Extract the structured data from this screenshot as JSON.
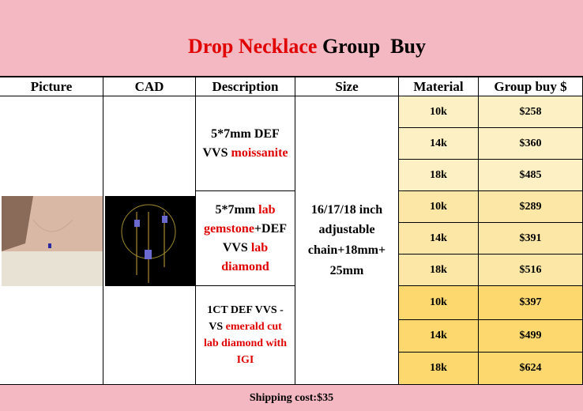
{
  "header": {
    "title_parts": [
      "Drop Necklace",
      "Group  Buy"
    ]
  },
  "table": {
    "columns": [
      "Picture",
      "CAD",
      "Description",
      "Size",
      "Material",
      "Group buy $"
    ],
    "descriptions": [
      [
        {
          "text": "5*7mm DEF VVS ",
          "red": false
        },
        {
          "text": "moissanite",
          "red": true
        }
      ],
      [
        {
          "text": "5*7mm ",
          "red": false
        },
        {
          "text": "lab gemstone",
          "red": true
        },
        {
          "text": "+DEF VVS ",
          "red": false
        },
        {
          "text": "lab diamond",
          "red": true
        }
      ],
      [
        {
          "text": "1CT DEF VVS - VS ",
          "red": false
        },
        {
          "text": "emerald cut lab diamond with IGI",
          "red": true
        }
      ]
    ],
    "size": "16/17/18 inch adjustable chain+18mm+ 25mm",
    "rows": [
      [
        "10k",
        "$258"
      ],
      [
        "14k",
        "$360"
      ],
      [
        "18k",
        "$485"
      ],
      [
        "10k",
        "$289"
      ],
      [
        "14k",
        "$391"
      ],
      [
        "18k",
        "$516"
      ],
      [
        "10k",
        "$397"
      ],
      [
        "14k",
        "$499"
      ],
      [
        "18k",
        "$624"
      ]
    ]
  },
  "footer": {
    "text": "Shipping cost:$35"
  }
}
